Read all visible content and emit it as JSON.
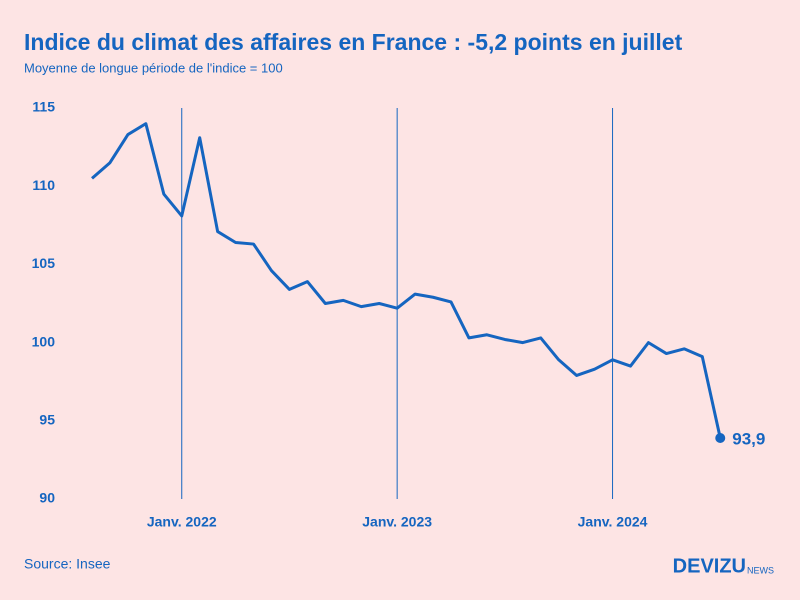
{
  "chart_data": {
    "type": "line",
    "title": "Indice du climat des affaires en France : -5,2 points en juillet",
    "subtitle": "Moyenne de longue période de l'indice = 100",
    "categories": [
      null,
      null,
      null,
      null,
      null,
      "Janv. 2022",
      null,
      null,
      null,
      null,
      null,
      null,
      null,
      null,
      null,
      null,
      null,
      "Janv. 2023",
      null,
      null,
      null,
      null,
      null,
      null,
      null,
      null,
      null,
      null,
      null,
      "Janv. 2024",
      null,
      null,
      null,
      null,
      null,
      null
    ],
    "series": [
      {
        "name": "Indice du climat des affaires",
        "color": "#1565c0",
        "values": [
          110.5,
          111.5,
          113.3,
          114.0,
          109.5,
          108.1,
          113.1,
          107.1,
          106.4,
          106.3,
          104.6,
          103.4,
          103.9,
          102.5,
          102.7,
          102.3,
          102.5,
          102.2,
          103.1,
          102.9,
          102.6,
          100.3,
          100.5,
          100.2,
          100.0,
          100.3,
          98.9,
          97.9,
          98.3,
          98.9,
          98.5,
          100.0,
          99.3,
          99.6,
          99.1,
          93.9
        ],
        "value_labels": [
          null,
          null,
          null,
          null,
          null,
          null,
          null,
          null,
          null,
          null,
          null,
          null,
          null,
          null,
          null,
          null,
          null,
          null,
          null,
          null,
          null,
          null,
          null,
          null,
          null,
          null,
          null,
          null,
          null,
          null,
          null,
          null,
          null,
          null,
          null,
          "93,9"
        ]
      }
    ],
    "ylim": [
      90,
      115
    ],
    "yticks": [
      90,
      95,
      100,
      105,
      110,
      115
    ],
    "grid": false,
    "source": "Source: Insee",
    "brand": "DEVIZU",
    "brand_suffix": "NEWS"
  }
}
